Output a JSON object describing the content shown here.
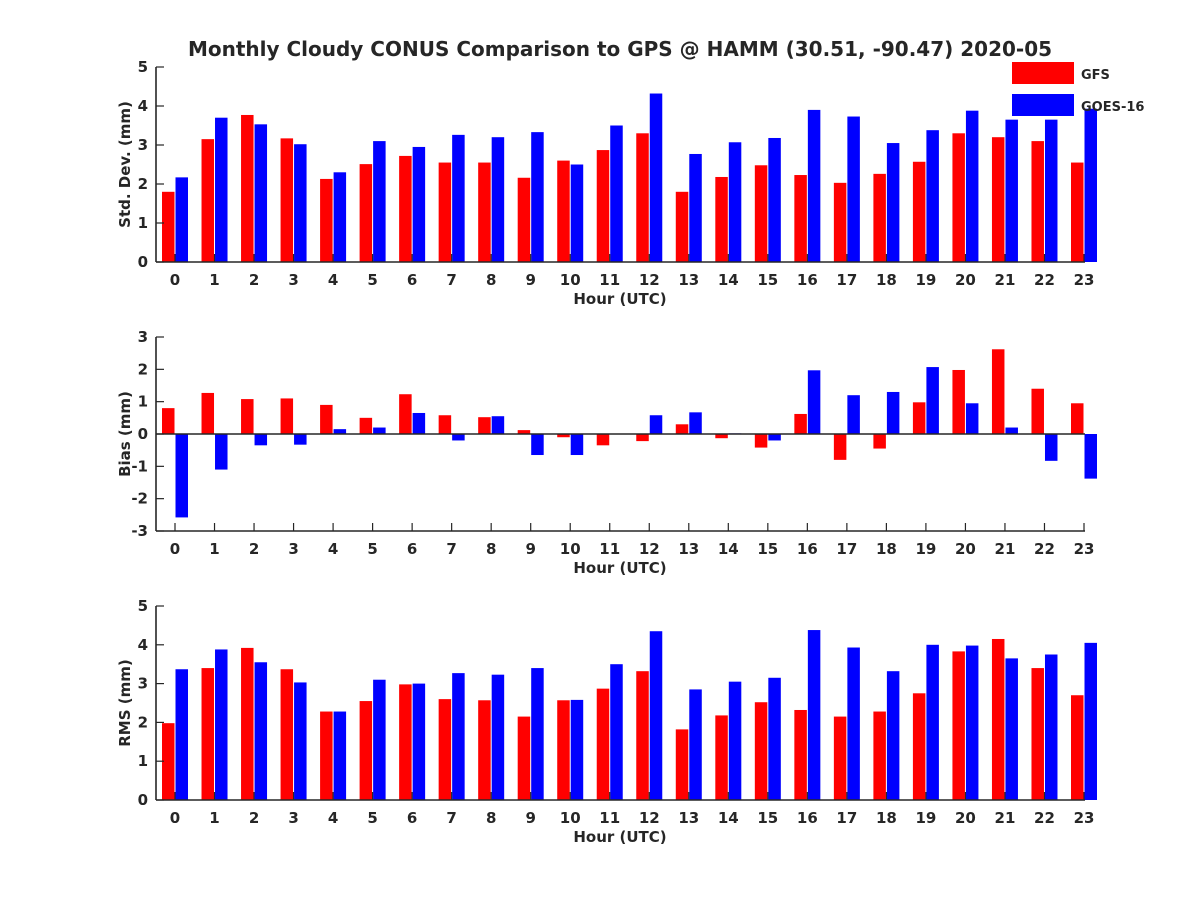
{
  "title": "Monthly Cloudy CONUS Comparison to GPS @ HAMM (30.51, -90.47) 2020-05",
  "colors": {
    "GFS": "#ff0000",
    "GOES-16": "#0000ff"
  },
  "legend": [
    "GFS",
    "GOES-16"
  ],
  "chart_data": [
    {
      "type": "bar",
      "ylabel": "Std. Dev. (mm)",
      "xlabel": "Hour (UTC)",
      "ylim": [
        0,
        5
      ],
      "yticks": [
        0,
        1,
        2,
        3,
        4,
        5
      ],
      "categories": [
        "0",
        "1",
        "2",
        "3",
        "4",
        "5",
        "6",
        "7",
        "8",
        "9",
        "10",
        "11",
        "12",
        "13",
        "14",
        "15",
        "16",
        "17",
        "18",
        "19",
        "20",
        "21",
        "22",
        "23"
      ],
      "series": [
        {
          "name": "GFS",
          "values": [
            1.8,
            3.15,
            3.77,
            3.17,
            2.13,
            2.51,
            2.72,
            2.55,
            2.55,
            2.16,
            2.6,
            2.87,
            3.3,
            1.8,
            2.18,
            2.48,
            2.23,
            2.03,
            2.26,
            2.57,
            3.3,
            3.2,
            3.1,
            2.55
          ]
        },
        {
          "name": "GOES-16",
          "values": [
            2.17,
            3.7,
            3.53,
            3.02,
            2.3,
            3.1,
            2.95,
            3.26,
            3.2,
            3.33,
            2.5,
            3.5,
            4.32,
            2.77,
            3.07,
            3.18,
            3.9,
            3.73,
            3.05,
            3.38,
            3.88,
            3.65,
            3.65,
            3.93
          ]
        }
      ]
    },
    {
      "type": "bar",
      "ylabel": "Bias (mm)",
      "xlabel": "Hour (UTC)",
      "ylim": [
        -3,
        3
      ],
      "yticks": [
        -3,
        -2,
        -1,
        0,
        1,
        2,
        3
      ],
      "categories": [
        "0",
        "1",
        "2",
        "3",
        "4",
        "5",
        "6",
        "7",
        "8",
        "9",
        "10",
        "11",
        "12",
        "13",
        "14",
        "15",
        "16",
        "17",
        "18",
        "19",
        "20",
        "21",
        "22",
        "23"
      ],
      "series": [
        {
          "name": "GFS",
          "values": [
            0.8,
            1.27,
            1.08,
            1.1,
            0.9,
            0.5,
            1.23,
            0.58,
            0.52,
            0.12,
            -0.1,
            -0.35,
            -0.22,
            0.3,
            -0.13,
            -0.42,
            0.62,
            -0.8,
            -0.45,
            0.98,
            1.98,
            2.62,
            1.4,
            0.95
          ]
        },
        {
          "name": "GOES-16",
          "values": [
            -2.58,
            -1.1,
            -0.35,
            -0.33,
            0.15,
            0.2,
            0.65,
            -0.2,
            0.55,
            -0.65,
            -0.65,
            0.0,
            0.58,
            0.67,
            0.02,
            -0.2,
            1.97,
            1.2,
            1.3,
            2.07,
            0.95,
            0.2,
            -0.83,
            -1.38
          ]
        }
      ]
    },
    {
      "type": "bar",
      "ylabel": "RMS (mm)",
      "xlabel": "Hour (UTC)",
      "ylim": [
        0,
        5
      ],
      "yticks": [
        0,
        1,
        2,
        3,
        4,
        5
      ],
      "categories": [
        "0",
        "1",
        "2",
        "3",
        "4",
        "5",
        "6",
        "7",
        "8",
        "9",
        "10",
        "11",
        "12",
        "13",
        "14",
        "15",
        "16",
        "17",
        "18",
        "19",
        "20",
        "21",
        "22",
        "23"
      ],
      "series": [
        {
          "name": "GFS",
          "values": [
            1.98,
            3.4,
            3.92,
            3.37,
            2.28,
            2.55,
            2.98,
            2.6,
            2.57,
            2.15,
            2.57,
            2.87,
            3.32,
            1.82,
            2.18,
            2.52,
            2.32,
            2.15,
            2.28,
            2.75,
            3.83,
            4.15,
            3.4,
            2.7
          ]
        },
        {
          "name": "GOES-16",
          "values": [
            3.37,
            3.88,
            3.55,
            3.03,
            2.28,
            3.1,
            3.0,
            3.27,
            3.23,
            3.4,
            2.58,
            3.5,
            4.35,
            2.85,
            3.05,
            3.15,
            4.38,
            3.93,
            3.32,
            4.0,
            3.98,
            3.65,
            3.75,
            4.05
          ]
        }
      ]
    }
  ]
}
